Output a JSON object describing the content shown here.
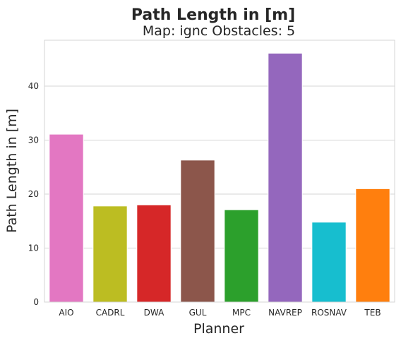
{
  "chart_data": {
    "type": "bar",
    "title": "Path Length in [m]",
    "subtitle": "Map: ignc Obstacles: 5",
    "xlabel": "Planner",
    "ylabel": "Path Length in [m]",
    "categories": [
      "AIO",
      "CADRL",
      "DWA",
      "GUL",
      "MPC",
      "NAVREP",
      "ROSNAV",
      "TEB"
    ],
    "values": [
      31.1,
      17.8,
      18.0,
      26.3,
      17.1,
      46.1,
      14.8,
      21.0
    ],
    "colors": [
      "#e377c2",
      "#bcbd22",
      "#d62728",
      "#8c564b",
      "#2ca02c",
      "#9467bd",
      "#17becf",
      "#ff7f0e"
    ],
    "ylim": [
      0,
      48.5
    ],
    "yticks": [
      0,
      10,
      20,
      30,
      40
    ],
    "grid": true,
    "legend": "none"
  }
}
